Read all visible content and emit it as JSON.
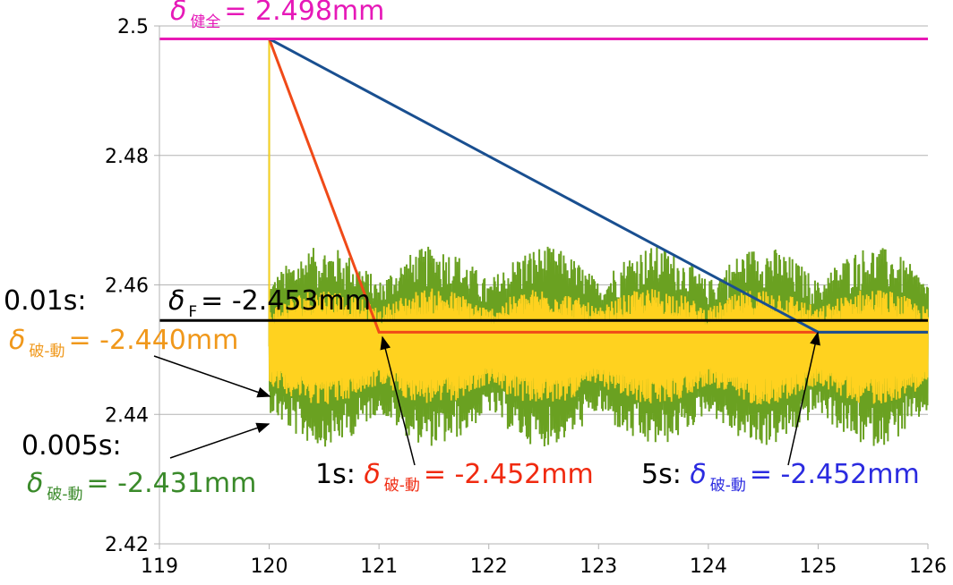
{
  "chart_data": {
    "type": "line",
    "xlim": [
      119,
      126
    ],
    "ylim": [
      2.42,
      2.5
    ],
    "x_ticks": [
      "119",
      "120",
      "121",
      "122",
      "123",
      "124",
      "125",
      "126"
    ],
    "y_ticks": [
      "2.42",
      "2.44",
      "2.46",
      "2.48",
      "2.5"
    ],
    "grid": "horizontal",
    "series": [
      {
        "color": "#6aa121",
        "points": [
          [
            119,
            2.498
          ],
          [
            120,
            2.498
          ],
          [
            120,
            2.4505
          ],
          [
            126,
            2.4505
          ]
        ],
        "noise_amplitude": 0.0155
      },
      {
        "color": "#ffd21f",
        "points": [
          [
            119,
            2.498
          ],
          [
            120,
            2.498
          ],
          [
            120,
            2.4505
          ],
          [
            126,
            2.4505
          ]
        ],
        "noise_amplitude": 0.009
      },
      {
        "color": "#f04a18",
        "points": [
          [
            120,
            2.498
          ],
          [
            121,
            2.4527
          ],
          [
            126,
            2.4527
          ]
        ]
      },
      {
        "color": "#194f90",
        "points": [
          [
            120,
            2.498
          ],
          [
            125,
            2.4527
          ],
          [
            126,
            2.4527
          ]
        ]
      }
    ],
    "reference_lines": [
      {
        "y": 2.498,
        "color": "#e819b5"
      },
      {
        "y": 2.4545,
        "color": "#000000"
      }
    ],
    "annotations": {
      "healthy": {
        "symbol": "δ",
        "sub": "健全",
        "text": "= 2.498mm",
        "color": "#e619b8"
      },
      "flush": {
        "symbol": "δ",
        "sub": "F",
        "text": "= -2.453mm",
        "color": "#000000"
      },
      "t001_time": {
        "text": "0.01s:",
        "color": "#000000"
      },
      "t001_value": {
        "symbol": "δ",
        "sub": "破-動",
        "text": "= -2.440mm",
        "color": "#f0981b"
      },
      "t0005_time": {
        "text": "0.005s:",
        "color": "#000000"
      },
      "t0005_value": {
        "symbol": "δ",
        "sub": "破-動",
        "text": "= -2.431mm",
        "color": "#3a8a2a"
      },
      "t1_time": {
        "text": "1s:",
        "color": "#000000"
      },
      "t1_value": {
        "symbol": "δ",
        "sub": "破-動",
        "text": "= -2.452mm",
        "color": "#f02a10"
      },
      "t5_time": {
        "text": "5s:",
        "color": "#000000"
      },
      "t5_value": {
        "symbol": "δ",
        "sub": "破-動",
        "text": "= -2.452mm",
        "color": "#2b2be0"
      }
    }
  }
}
